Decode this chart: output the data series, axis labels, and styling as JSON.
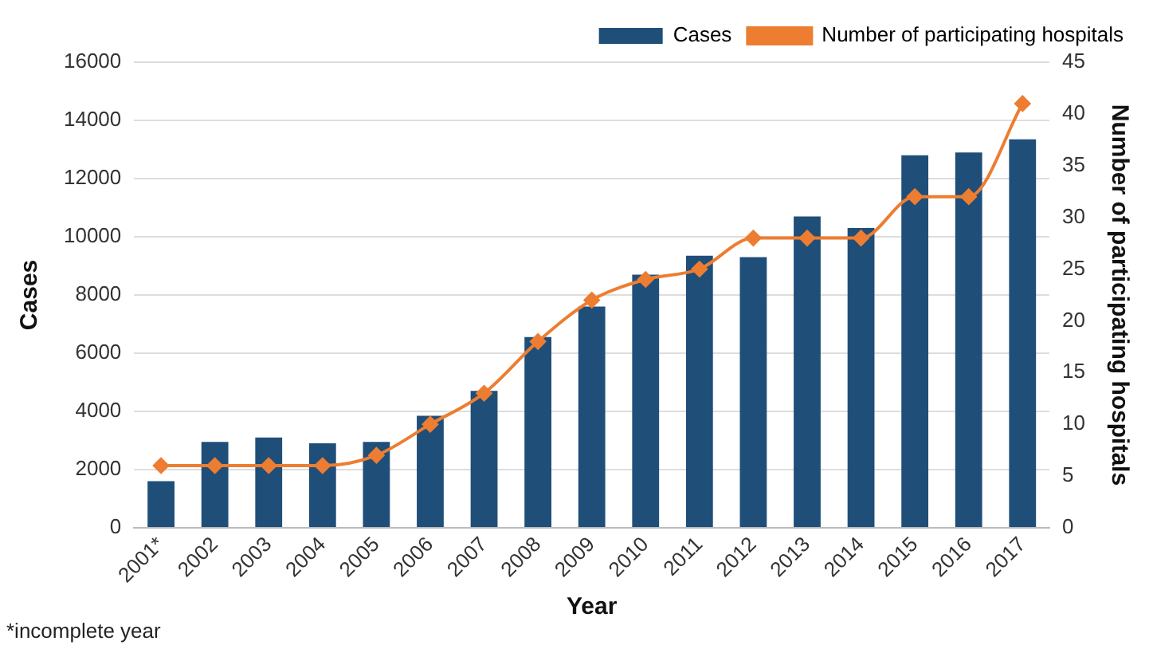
{
  "chart_data": {
    "type": "bar",
    "xlabel": "Year",
    "ylabel": "Cases",
    "y2label": "Number of participating hospitals",
    "categories": [
      "2001*",
      "2002",
      "2003",
      "2004",
      "2005",
      "2006",
      "2007",
      "2008",
      "2009",
      "2010",
      "2011",
      "2012",
      "2013",
      "2014",
      "2015",
      "2016",
      "2017"
    ],
    "series": [
      {
        "name": "Cases",
        "color": "#1f4e79",
        "values": [
          1600,
          2950,
          3100,
          2900,
          2950,
          3850,
          4700,
          6550,
          7600,
          8700,
          9350,
          9300,
          10700,
          10300,
          12800,
          12900,
          13350
        ]
      },
      {
        "name": "Number of participating hospitals",
        "type": "line",
        "axis": "y2",
        "color": "#ed7d31",
        "values": [
          6,
          6,
          6,
          6,
          7,
          10,
          13,
          18,
          22,
          24,
          25,
          28,
          28,
          28,
          32,
          32,
          41
        ]
      }
    ],
    "ylim": [
      0,
      16000
    ],
    "yticks": [
      0,
      2000,
      4000,
      6000,
      8000,
      10000,
      12000,
      14000,
      16000
    ],
    "y2lim": [
      0,
      45
    ],
    "y2ticks": [
      0,
      5,
      10,
      15,
      20,
      25,
      30,
      35,
      40,
      45
    ],
    "grid": "y",
    "legend": "top",
    "marker": "diamond",
    "annotations": [
      "*incomplete year"
    ]
  }
}
